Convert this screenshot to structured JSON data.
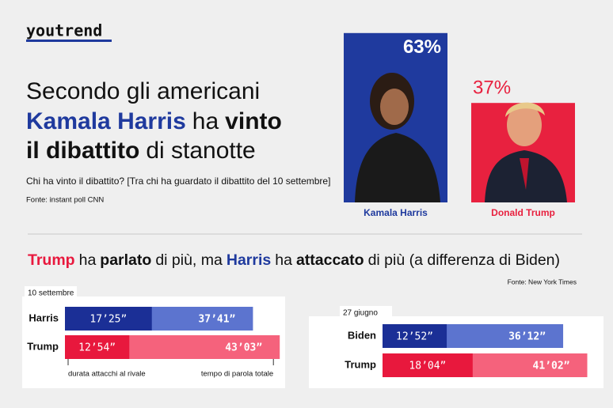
{
  "header": {
    "logo": "youtrend",
    "title_lines": [
      [
        "Secondo gli americani"
      ],
      [
        "Kamala Harris",
        "ha",
        "vinto"
      ],
      [
        "il dibattito",
        "di stanotte"
      ]
    ],
    "question": "Chi ha vinto il dibattito? [Tra chi ha guardato il dibattito del 10 settembre]",
    "source": "Fonte: instant poll CNN"
  },
  "section": {
    "heading": [
      "Trump",
      "ha",
      "parlato",
      "di più, ma",
      "Harris",
      "ha",
      "attaccato",
      "di più (a differenza di Biden)"
    ],
    "source": "Fonte: New York Times"
  },
  "chart_data": [
    {
      "type": "bar",
      "categories": [
        "Kamala Harris",
        "Donald Trump"
      ],
      "values": [
        63,
        37
      ],
      "value_labels": [
        "63%",
        "37%"
      ],
      "colors": [
        "#1f3a9e",
        "#e8213f"
      ]
    },
    {
      "type": "overlap-hbar",
      "subtitle": "10 settembre",
      "categories": [
        "Harris",
        "Trump"
      ],
      "series": [
        {
          "name": "durata attacchi al rivale",
          "colors": [
            "#1b2f96",
            "#e8183d"
          ],
          "values": [
            1045,
            774
          ],
          "value_labels": [
            "17’25”",
            "12’54”"
          ]
        },
        {
          "name": "tempo di parola totale",
          "colors": [
            "#5c74cf",
            "#f5627c"
          ],
          "values": [
            2261,
            2583
          ],
          "value_labels": [
            "37’41”",
            "43’03”"
          ]
        }
      ]
    },
    {
      "type": "overlap-hbar",
      "subtitle": "27 giugno",
      "categories": [
        "Biden",
        "Trump"
      ],
      "series": [
        {
          "colors": [
            "#1b2f96",
            "#e8183d"
          ],
          "values": [
            772,
            1084
          ],
          "value_labels": [
            "12’52”",
            "18’04”"
          ]
        },
        {
          "colors": [
            "#5c74cf",
            "#f5627c"
          ],
          "values": [
            2172,
            2462
          ],
          "value_labels": [
            "36’12”",
            "41’02”"
          ]
        }
      ]
    }
  ]
}
